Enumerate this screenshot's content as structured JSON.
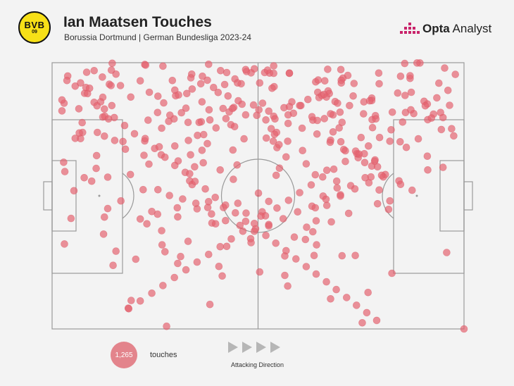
{
  "header": {
    "badge": {
      "text": "BVB",
      "year": "09",
      "color": "#f7e017"
    },
    "title": "Ian Maatsen Touches",
    "subtitle": "Borussia Dortmund | German Bundesliga 2023-24",
    "brand": {
      "bold": "Opta",
      "regular": " Analyst",
      "accent": "#c8236a"
    }
  },
  "chart_data": {
    "type": "scatter",
    "title": "Ian Maatsen Touches",
    "subtitle": "Borussia Dortmund | German Bundesliga 2023-24",
    "xlim": [
      0,
      100
    ],
    "ylim": [
      0,
      100
    ],
    "point_color": "#e46470",
    "total_touches": 1265,
    "seed": 9173,
    "points": [
      [
        8.4,
        96.4
      ],
      [
        12.2,
        94.6
      ],
      [
        14.6,
        99.8
      ],
      [
        19.1,
        87.1
      ],
      [
        23.3,
        78.4
      ],
      [
        17.2,
        70.4
      ],
      [
        22.1,
        52.3
      ],
      [
        30.6,
        63.1
      ],
      [
        30.5,
        42.1
      ],
      [
        37.8,
        45.6
      ],
      [
        5.3,
        51.9
      ],
      [
        2.9,
        84.8
      ],
      [
        16.6,
        91.4
      ],
      [
        10.7,
        60.3
      ],
      [
        38.3,
        9.2
      ],
      [
        41.3,
        19.9
      ],
      [
        27.8,
        1.0
      ],
      [
        31.4,
        81.2
      ],
      [
        33.4,
        55.6
      ],
      [
        40.5,
        23.5
      ],
      [
        50.1,
        51.0
      ],
      [
        54.6,
        68.1
      ],
      [
        61.7,
        62.0
      ],
      [
        58.8,
        34.5
      ],
      [
        64.1,
        40.6
      ],
      [
        57.2,
        16.1
      ],
      [
        67.6,
        11.3
      ],
      [
        75.3,
        2.3
      ],
      [
        76.7,
        13.7
      ],
      [
        82.5,
        20.9
      ],
      [
        82.0,
        48.1
      ],
      [
        86.9,
        94.1
      ],
      [
        94.5,
        74.9
      ],
      [
        97.0,
        75.2
      ],
      [
        100.0,
        0.0
      ],
      [
        91.1,
        84.5
      ],
      [
        95.3,
        98.0
      ],
      [
        87.2,
        88.9
      ],
      [
        65.8,
        49.9
      ],
      [
        56.5,
        20.1
      ],
      [
        27.4,
        29.0
      ],
      [
        30.5,
        24.6
      ],
      [
        33.0,
        32.9
      ],
      [
        34.0,
        54.2
      ],
      [
        25.7,
        52.3
      ],
      [
        26.7,
        31.6
      ],
      [
        12.5,
        35.6
      ],
      [
        18.5,
        7.8
      ],
      [
        19.2,
        10.7
      ],
      [
        11.0,
        73.8
      ],
      [
        17.8,
        67.5
      ],
      [
        12.3,
        79.6
      ],
      [
        7.3,
        77.5
      ],
      [
        52.6,
        47.9
      ],
      [
        55.2,
        60.4
      ],
      [
        63.9,
        57.9
      ],
      [
        66.7,
        46.4
      ],
      [
        47.1,
        43.5
      ],
      [
        45.1,
        47.2
      ],
      [
        69.2,
        53.0
      ],
      [
        72.5,
        53.8
      ],
      [
        82.0,
        70.5
      ],
      [
        82.6,
        81.4
      ],
      [
        75.8,
        65.8
      ],
      [
        77.7,
        78.6
      ],
      [
        68.2,
        74.0
      ],
      [
        70.2,
        92.4
      ],
      [
        64.5,
        88.9
      ],
      [
        60.4,
        83.9
      ],
      [
        54.5,
        73.8
      ],
      [
        45.9,
        92.1
      ],
      [
        41.5,
        82.8
      ],
      [
        32.5,
        82.9
      ],
      [
        26.9,
        98.7
      ],
      [
        21.4,
        93.2
      ],
      [
        6.9,
        71.5
      ],
      [
        9.6,
        55.5
      ],
      [
        25.6,
        43.1
      ],
      [
        23.0,
        39.5
      ],
      [
        13.5,
        45.2
      ],
      [
        16.7,
        48.1
      ],
      [
        38.8,
        39.8
      ],
      [
        42.4,
        31.0
      ],
      [
        48.2,
        33.9
      ],
      [
        56.5,
        27.4
      ],
      [
        61.5,
        33.6
      ],
      [
        64.2,
        31.6
      ],
      [
        72.0,
        43.4
      ],
      [
        73.6,
        27.6
      ],
      [
        84.5,
        70.3
      ],
      [
        90.3,
        85.5
      ],
      [
        88.9,
        71.4
      ],
      [
        85.8,
        81.3
      ],
      [
        92.6,
        80.7
      ],
      [
        91.2,
        78.6
      ],
      [
        77.6,
        86.7
      ],
      [
        57.6,
        96.1
      ],
      [
        42.4,
        96.3
      ],
      [
        35.3,
        72.7
      ],
      [
        46.6,
        71.4
      ],
      [
        51.0,
        44.0
      ],
      [
        34.6,
        60.9
      ],
      [
        19.0,
        58.0
      ],
      [
        23.5,
        61.9
      ],
      [
        26.5,
        65.4
      ],
      [
        29.8,
        68.7
      ],
      [
        33.1,
        70.8
      ],
      [
        36.8,
        73.0
      ],
      [
        39.8,
        75.5
      ],
      [
        43.4,
        76.7
      ],
      [
        47.0,
        80.4
      ],
      [
        50.2,
        82.3
      ],
      [
        53.8,
        79.9
      ],
      [
        57.3,
        77.2
      ],
      [
        60.7,
        75.4
      ],
      [
        64.3,
        73.2
      ],
      [
        67.6,
        70.9
      ],
      [
        70.8,
        67.4
      ],
      [
        74.3,
        64.3
      ],
      [
        77.6,
        61.2
      ],
      [
        80.9,
        58.0
      ],
      [
        84.2,
        55.6
      ],
      [
        87.4,
        52.1
      ],
      [
        28.5,
        50.1
      ],
      [
        31.7,
        48.8
      ],
      [
        35.2,
        45.1
      ],
      [
        38.7,
        43.2
      ],
      [
        42.1,
        40.7
      ],
      [
        45.6,
        38.9
      ],
      [
        49.1,
        36.7
      ],
      [
        52.6,
        39.2
      ],
      [
        56.1,
        41.4
      ],
      [
        59.6,
        44.0
      ],
      [
        63.1,
        46.1
      ],
      [
        66.5,
        48.7
      ],
      [
        70.0,
        50.4
      ],
      [
        73.5,
        52.6
      ],
      [
        76.9,
        54.9
      ],
      [
        80.4,
        57.1
      ],
      [
        3.8,
        95.0
      ],
      [
        5.6,
        91.2
      ],
      [
        7.9,
        88.5
      ],
      [
        10.2,
        85.1
      ],
      [
        12.7,
        82.6
      ],
      [
        15.1,
        79.4
      ],
      [
        17.6,
        76.4
      ],
      [
        20.0,
        73.3
      ],
      [
        22.5,
        70.6
      ],
      [
        24.9,
        67.8
      ],
      [
        27.4,
        64.5
      ],
      [
        29.8,
        61.4
      ],
      [
        32.3,
        58.8
      ],
      [
        34.7,
        55.4
      ],
      [
        37.2,
        52.6
      ],
      [
        39.6,
        49.4
      ],
      [
        42.1,
        46.5
      ],
      [
        44.5,
        43.6
      ],
      [
        47.0,
        40.4
      ],
      [
        49.4,
        37.6
      ],
      [
        51.9,
        35.1
      ],
      [
        54.3,
        32.2
      ],
      [
        56.8,
        29.4
      ],
      [
        59.2,
        26.3
      ],
      [
        61.7,
        23.4
      ],
      [
        64.1,
        20.6
      ],
      [
        66.6,
        17.7
      ],
      [
        69.0,
        14.8
      ],
      [
        71.5,
        11.8
      ],
      [
        73.9,
        8.9
      ],
      [
        76.4,
        6.1
      ],
      [
        78.8,
        3.2
      ],
      [
        96.1,
        89.6
      ],
      [
        93.4,
        86.8
      ],
      [
        90.6,
        83.8
      ],
      [
        87.8,
        80.9
      ],
      [
        85.1,
        77.7
      ],
      [
        82.3,
        74.8
      ],
      [
        79.5,
        71.9
      ],
      [
        76.8,
        68.7
      ],
      [
        74.0,
        65.8
      ],
      [
        71.2,
        62.9
      ],
      [
        68.4,
        60.0
      ],
      [
        65.7,
        57.1
      ],
      [
        62.9,
        54.1
      ],
      [
        60.1,
        51.2
      ],
      [
        57.4,
        48.3
      ],
      [
        54.6,
        45.4
      ],
      [
        51.8,
        42.5
      ],
      [
        49.1,
        39.6
      ],
      [
        46.3,
        36.7
      ],
      [
        43.5,
        33.8
      ],
      [
        40.8,
        30.9
      ],
      [
        38.0,
        28.0
      ],
      [
        35.2,
        25.1
      ],
      [
        32.5,
        22.2
      ],
      [
        29.7,
        19.3
      ],
      [
        26.9,
        16.3
      ],
      [
        24.2,
        13.4
      ],
      [
        21.4,
        10.5
      ],
      [
        18.6,
        7.6
      ]
    ]
  },
  "legend": {
    "count_label": "1,265",
    "touches_label": "touches",
    "direction_label": "Attacking Direction",
    "arrow_count": 4
  },
  "colors": {
    "background": "#f3f3f3",
    "pitch_line": "#9a9a9a",
    "point": "#e46470"
  }
}
